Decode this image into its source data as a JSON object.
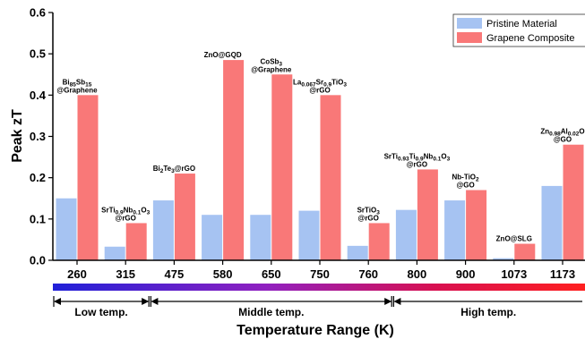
{
  "chart_data": {
    "type": "bar",
    "ylabel": "Peak zT",
    "xlabel": "Temperature Range (K)",
    "ylim": [
      0,
      0.6
    ],
    "yticks": [
      "0.0",
      "0.1",
      "0.2",
      "0.3",
      "0.4",
      "0.5",
      "0.6"
    ],
    "categories": [
      "260",
      "315",
      "475",
      "580",
      "650",
      "750",
      "760",
      "800",
      "900",
      "1073",
      "1173"
    ],
    "series": [
      {
        "name": "Pristine Material",
        "color": "#a6c3f2",
        "values": [
          0.15,
          0.033,
          0.145,
          0.11,
          0.11,
          0.12,
          0.035,
          0.122,
          0.145,
          0.005,
          0.18
        ]
      },
      {
        "name": "Grapene Composite",
        "color": "#f97878",
        "values": [
          0.4,
          0.09,
          0.21,
          0.485,
          0.45,
          0.4,
          0.09,
          0.22,
          0.17,
          0.04,
          0.28
        ]
      }
    ],
    "annotations": [
      {
        "category": "260",
        "lines": [
          [
            [
              "Bi",
              ""
            ],
            [
              "85",
              "sub"
            ],
            [
              "Sb",
              ""
            ],
            [
              "15",
              "sub"
            ]
          ],
          [
            [
              "@Graphene",
              ""
            ]
          ]
        ]
      },
      {
        "category": "315",
        "lines": [
          [
            [
              "SrTi",
              ""
            ],
            [
              "0.9",
              "sub"
            ],
            [
              "Nb",
              ""
            ],
            [
              "0.1",
              "sub"
            ],
            [
              "O",
              ""
            ],
            [
              "3",
              "sub"
            ]
          ],
          [
            [
              "@rGO",
              ""
            ]
          ]
        ]
      },
      {
        "category": "475",
        "lines": [
          [
            [
              "Bi",
              ""
            ],
            [
              "2",
              "sub"
            ],
            [
              "Te",
              ""
            ],
            [
              "3",
              "sub"
            ],
            [
              "@rGO",
              ""
            ]
          ]
        ]
      },
      {
        "category": "580",
        "lines": [
          [
            [
              "ZnO@GQD",
              ""
            ]
          ]
        ]
      },
      {
        "category": "650",
        "lines": [
          [
            [
              "CoSb",
              ""
            ],
            [
              "3",
              "sub"
            ]
          ],
          [
            [
              "@Graphene",
              ""
            ]
          ]
        ]
      },
      {
        "category": "750",
        "lines": [
          [
            [
              "La",
              ""
            ],
            [
              "0.067",
              "sub"
            ],
            [
              "Sr",
              ""
            ],
            [
              "0.9",
              "sub"
            ],
            [
              "TiO",
              ""
            ],
            [
              "3",
              "sub"
            ]
          ],
          [
            [
              "@rGO",
              ""
            ]
          ]
        ]
      },
      {
        "category": "760",
        "lines": [
          [
            [
              "SrTiO",
              ""
            ],
            [
              "3",
              "sub"
            ]
          ],
          [
            [
              "@rGO",
              ""
            ]
          ]
        ]
      },
      {
        "category": "800",
        "lines": [
          [
            [
              "SrTi",
              ""
            ],
            [
              "0.93",
              "sub"
            ],
            [
              "Ti",
              ""
            ],
            [
              "0.9",
              "sub"
            ],
            [
              "Nb",
              ""
            ],
            [
              "0.1",
              "sub"
            ],
            [
              "O",
              ""
            ],
            [
              "3",
              "sub"
            ]
          ],
          [
            [
              "@rGO",
              ""
            ]
          ]
        ]
      },
      {
        "category": "900",
        "lines": [
          [
            [
              "Nb-TiO",
              ""
            ],
            [
              "2",
              "sub"
            ]
          ],
          [
            [
              "@GO",
              ""
            ]
          ]
        ]
      },
      {
        "category": "1073",
        "lines": [
          [
            [
              "ZnO@SLG",
              ""
            ]
          ]
        ]
      },
      {
        "category": "1173",
        "lines": [
          [
            [
              "Zn",
              ""
            ],
            [
              "0.98",
              "sub"
            ],
            [
              "Al",
              ""
            ],
            [
              "0.02",
              "sub"
            ],
            [
              "O",
              ""
            ]
          ],
          [
            [
              "@GO",
              ""
            ]
          ]
        ]
      }
    ],
    "temperature_ranges": [
      {
        "label": "Low temp.",
        "from": "260",
        "to": "315"
      },
      {
        "label": "Middle temp.",
        "from": "475",
        "to": "760"
      },
      {
        "label": "High temp.",
        "from": "800",
        "to": "1173"
      }
    ],
    "colorbar": [
      "#2020d8",
      "#9020c0",
      "#d81050",
      "#ff2020"
    ],
    "legend_position": "top-right",
    "grid": false
  }
}
